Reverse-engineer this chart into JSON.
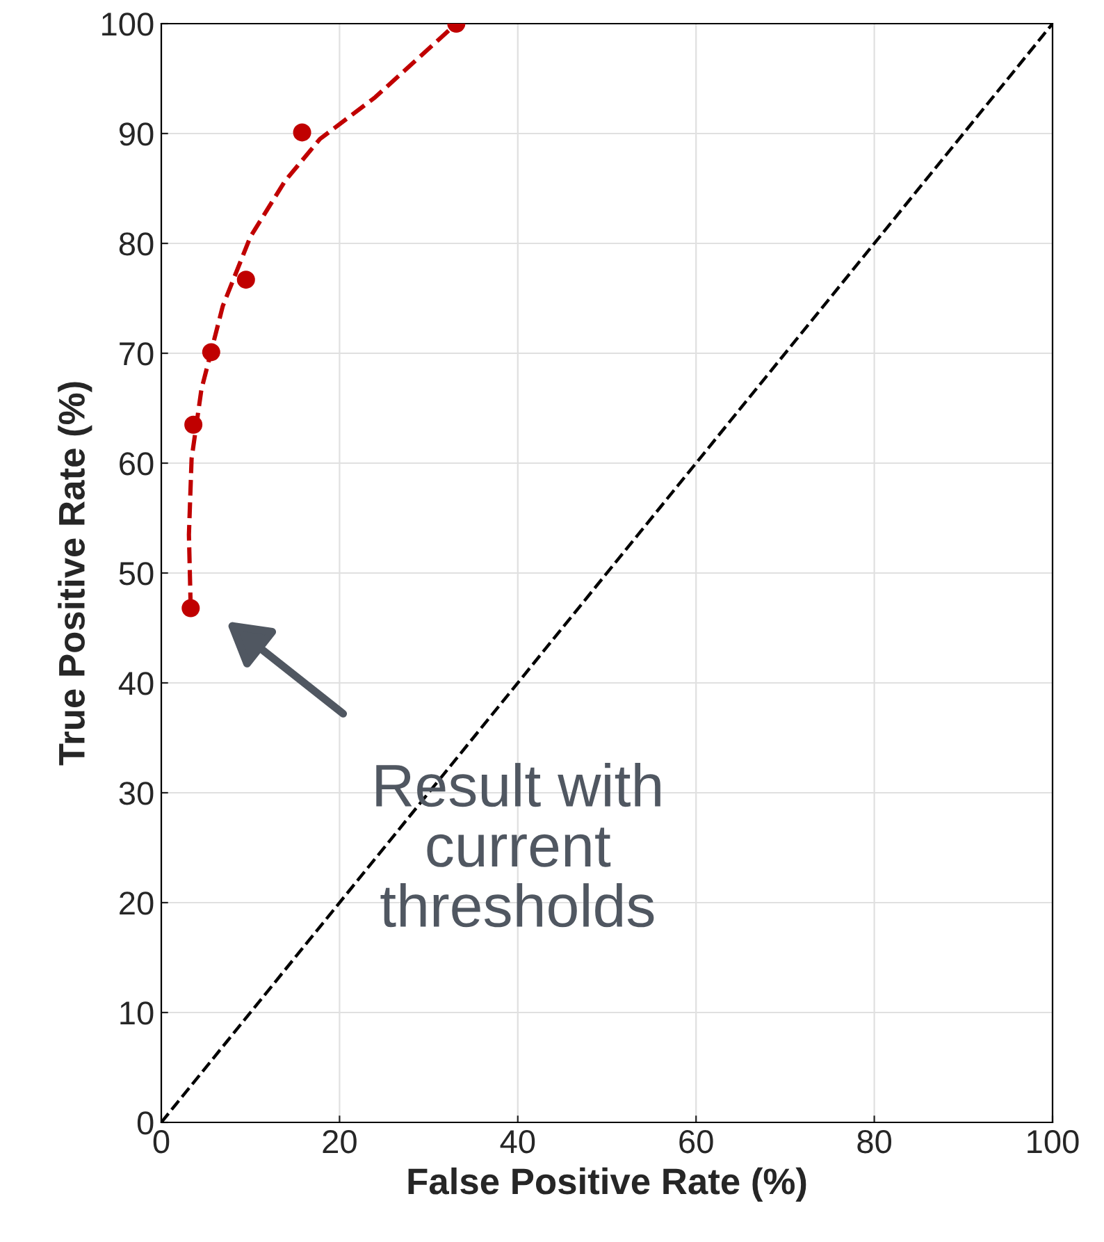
{
  "chart_data": {
    "type": "scatter",
    "xlabel": "False Positive Rate (%)",
    "ylabel": "True Positive Rate (%)",
    "xlim": [
      0,
      100
    ],
    "ylim": [
      0,
      100
    ],
    "xticks": [
      0,
      20,
      40,
      60,
      80,
      100
    ],
    "yticks": [
      0,
      10,
      20,
      30,
      40,
      50,
      60,
      70,
      80,
      90,
      100
    ],
    "grid": true,
    "legend": false,
    "series": [
      {
        "type": "line",
        "color": "#000000",
        "line_style": "dashed",
        "marker": "none",
        "x": [
          0,
          100
        ],
        "values": [
          0,
          100
        ]
      },
      {
        "type": "line",
        "color": "#c00000",
        "line_style": "dashed",
        "marker": "none",
        "x": [
          3.3,
          3.1,
          3.4,
          4.5,
          6.9,
          10,
          13.9,
          17.8,
          24,
          33.1
        ],
        "values": [
          46.8,
          53.5,
          60.4,
          66.7,
          74.3,
          80.6,
          85.7,
          89.5,
          93.3,
          100
        ]
      },
      {
        "color": "#c00000",
        "marker": "circle",
        "x": [
          3.3,
          3.6,
          5.6,
          9.5,
          15.8,
          33.1
        ],
        "values": [
          46.8,
          63.5,
          70.1,
          76.7,
          90.1,
          100
        ]
      }
    ],
    "annotations": [
      "Result with\ncurrent\nthresholds"
    ]
  }
}
